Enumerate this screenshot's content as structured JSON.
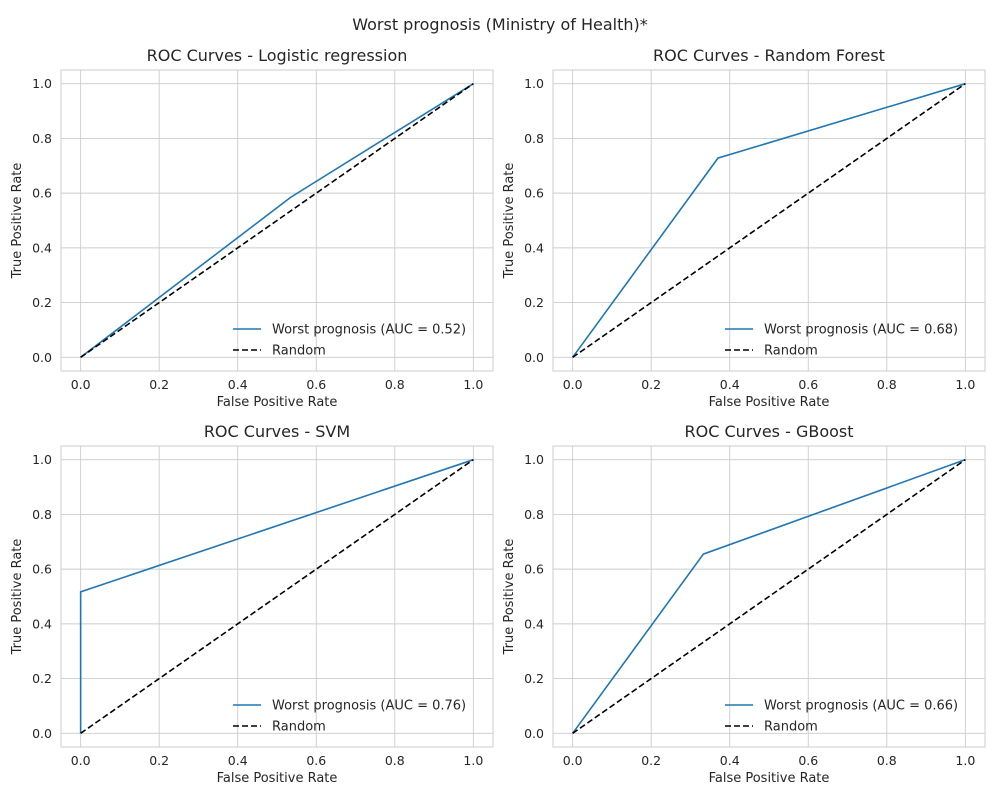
{
  "figure": {
    "suptitle": "Worst prognosis (Ministry of Health)*"
  },
  "colors": {
    "curve": "#1f77b4",
    "random": "#000000",
    "grid": "#cccccc",
    "spine": "#cccccc"
  },
  "chart_data": [
    {
      "type": "line",
      "title": "ROC Curves - Logistic regression",
      "xlabel": "False Positive Rate",
      "ylabel": "True Positive Rate",
      "xlim": [
        -0.05,
        1.05
      ],
      "ylim": [
        -0.05,
        1.05
      ],
      "xticks": [
        0.0,
        0.2,
        0.4,
        0.6,
        0.8,
        1.0
      ],
      "yticks": [
        0.0,
        0.2,
        0.4,
        0.6,
        0.8,
        1.0
      ],
      "grid": true,
      "legend_position": "lower-right",
      "series": [
        {
          "name": "Worst prognosis (AUC = 0.52)",
          "style": "solid",
          "x": [
            0.0,
            0.535,
            1.0
          ],
          "y": [
            0.0,
            0.585,
            1.0
          ]
        },
        {
          "name": "Random",
          "style": "dashed",
          "x": [
            0.0,
            1.0
          ],
          "y": [
            0.0,
            1.0
          ]
        }
      ]
    },
    {
      "type": "line",
      "title": "ROC Curves - Random Forest",
      "xlabel": "False Positive Rate",
      "ylabel": "True Positive Rate",
      "xlim": [
        -0.05,
        1.05
      ],
      "ylim": [
        -0.05,
        1.05
      ],
      "xticks": [
        0.0,
        0.2,
        0.4,
        0.6,
        0.8,
        1.0
      ],
      "yticks": [
        0.0,
        0.2,
        0.4,
        0.6,
        0.8,
        1.0
      ],
      "grid": true,
      "legend_position": "lower-right",
      "series": [
        {
          "name": "Worst prognosis (AUC = 0.68)",
          "style": "solid",
          "x": [
            0.0,
            0.37,
            1.0
          ],
          "y": [
            0.0,
            0.728,
            1.0
          ]
        },
        {
          "name": "Random",
          "style": "dashed",
          "x": [
            0.0,
            1.0
          ],
          "y": [
            0.0,
            1.0
          ]
        }
      ]
    },
    {
      "type": "line",
      "title": "ROC Curves - SVM",
      "xlabel": "False Positive Rate",
      "ylabel": "True Positive Rate",
      "xlim": [
        -0.05,
        1.05
      ],
      "ylim": [
        -0.05,
        1.05
      ],
      "xticks": [
        0.0,
        0.2,
        0.4,
        0.6,
        0.8,
        1.0
      ],
      "yticks": [
        0.0,
        0.2,
        0.4,
        0.6,
        0.8,
        1.0
      ],
      "grid": true,
      "legend_position": "lower-right",
      "series": [
        {
          "name": "Worst prognosis (AUC = 0.76)",
          "style": "solid",
          "x": [
            0.0,
            0.0,
            1.0
          ],
          "y": [
            0.0,
            0.517,
            1.0
          ]
        },
        {
          "name": "Random",
          "style": "dashed",
          "x": [
            0.0,
            1.0
          ],
          "y": [
            0.0,
            1.0
          ]
        }
      ]
    },
    {
      "type": "line",
      "title": "ROC Curves - GBoost",
      "xlabel": "False Positive Rate",
      "ylabel": "True Positive Rate",
      "xlim": [
        -0.05,
        1.05
      ],
      "ylim": [
        -0.05,
        1.05
      ],
      "xticks": [
        0.0,
        0.2,
        0.4,
        0.6,
        0.8,
        1.0
      ],
      "yticks": [
        0.0,
        0.2,
        0.4,
        0.6,
        0.8,
        1.0
      ],
      "grid": true,
      "legend_position": "lower-right",
      "series": [
        {
          "name": "Worst prognosis (AUC = 0.66)",
          "style": "solid",
          "x": [
            0.0,
            0.333,
            1.0
          ],
          "y": [
            0.0,
            0.655,
            1.0
          ]
        },
        {
          "name": "Random",
          "style": "dashed",
          "x": [
            0.0,
            1.0
          ],
          "y": [
            0.0,
            1.0
          ]
        }
      ]
    }
  ]
}
